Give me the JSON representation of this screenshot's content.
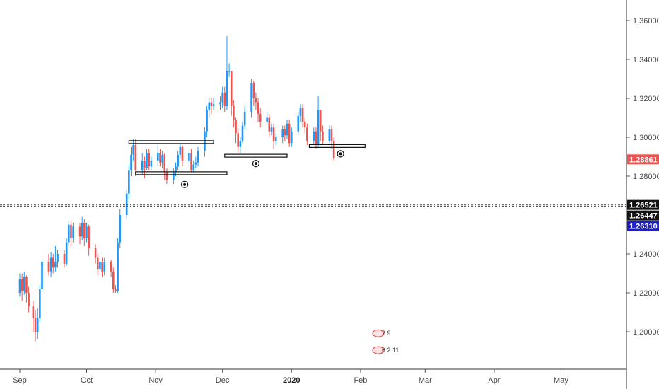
{
  "chart_data": {
    "type": "candlestick",
    "y_axis": {
      "min": 1.18,
      "max": 1.37,
      "ticks": [
        "1.36000",
        "1.34000",
        "1.32000",
        "1.30000",
        "1.28000",
        "1.24000",
        "1.22000",
        "1.20000"
      ],
      "tick_values": [
        1.36,
        1.34,
        1.32,
        1.3,
        1.28,
        1.24,
        1.22,
        1.2
      ]
    },
    "x_axis": {
      "labels": [
        "Sep",
        "Oct",
        "Nov",
        "Dec",
        "2020",
        "Feb",
        "Mar",
        "Apr",
        "May"
      ],
      "label_days": [
        0,
        30,
        61,
        91,
        122,
        153,
        182,
        213,
        243
      ],
      "bold": [
        "2020"
      ]
    },
    "colors": {
      "up": "#2196f3",
      "down": "#ef5350",
      "line": "#1c1cc8",
      "text": "#4a4a4a"
    },
    "candles": [
      [
        0,
        1.22,
        1.227,
        1.218,
        1.23
      ],
      [
        1,
        1.227,
        1.221,
        1.216,
        1.23
      ],
      [
        2,
        1.221,
        1.228,
        1.219,
        1.231
      ],
      [
        3,
        1.228,
        1.22,
        1.215,
        1.229
      ],
      [
        4,
        1.22,
        1.213,
        1.21,
        1.223
      ],
      [
        6,
        1.213,
        1.207,
        1.2,
        1.216
      ],
      [
        7,
        1.207,
        1.2,
        1.195,
        1.211
      ],
      [
        8,
        1.2,
        1.207,
        1.196,
        1.212
      ],
      [
        9,
        1.207,
        1.222,
        1.205,
        1.224
      ],
      [
        10,
        1.222,
        1.236,
        1.22,
        1.238
      ],
      [
        13,
        1.236,
        1.231,
        1.229,
        1.24
      ],
      [
        14,
        1.231,
        1.238,
        1.228,
        1.241
      ],
      [
        15,
        1.238,
        1.233,
        1.23,
        1.24
      ],
      [
        16,
        1.233,
        1.236,
        1.231,
        1.244
      ],
      [
        17,
        1.236,
        1.24,
        1.233,
        1.242
      ],
      [
        20,
        1.24,
        1.235,
        1.233,
        1.242
      ],
      [
        21,
        1.235,
        1.246,
        1.234,
        1.248
      ],
      [
        22,
        1.246,
        1.255,
        1.244,
        1.257
      ],
      [
        23,
        1.255,
        1.248,
        1.244,
        1.257
      ],
      [
        24,
        1.248,
        1.254,
        1.246,
        1.256
      ],
      [
        27,
        1.254,
        1.249,
        1.245,
        1.256
      ],
      [
        28,
        1.249,
        1.256,
        1.247,
        1.259
      ],
      [
        29,
        1.256,
        1.248,
        1.244,
        1.258
      ],
      [
        30,
        1.248,
        1.254,
        1.246,
        1.256
      ],
      [
        31,
        1.254,
        1.243,
        1.239,
        1.255
      ],
      [
        34,
        1.243,
        1.238,
        1.235,
        1.245
      ],
      [
        35,
        1.238,
        1.232,
        1.229,
        1.24
      ],
      [
        36,
        1.232,
        1.236,
        1.229,
        1.238
      ],
      [
        37,
        1.236,
        1.231,
        1.228,
        1.238
      ],
      [
        38,
        1.231,
        1.236,
        1.229,
        1.238
      ],
      [
        41,
        1.236,
        1.231,
        1.228,
        1.237
      ],
      [
        42,
        1.231,
        1.222,
        1.22,
        1.233
      ],
      [
        43,
        1.222,
        1.221,
        1.22,
        1.224
      ],
      [
        44,
        1.221,
        1.246,
        1.22,
        1.248
      ],
      [
        45,
        1.246,
        1.26,
        1.243,
        1.263
      ],
      [
        48,
        1.26,
        1.271,
        1.258,
        1.273
      ],
      [
        49,
        1.271,
        1.283,
        1.268,
        1.286
      ],
      [
        50,
        1.283,
        1.291,
        1.28,
        1.295
      ],
      [
        51,
        1.291,
        1.296,
        1.288,
        1.299
      ],
      [
        52,
        1.296,
        1.283,
        1.28,
        1.299
      ],
      [
        55,
        1.283,
        1.288,
        1.281,
        1.292
      ],
      [
        56,
        1.288,
        1.284,
        1.279,
        1.29
      ],
      [
        57,
        1.284,
        1.292,
        1.283,
        1.294
      ],
      [
        58,
        1.292,
        1.285,
        1.283,
        1.294
      ],
      [
        59,
        1.285,
        1.288,
        1.283,
        1.29
      ],
      [
        62,
        1.288,
        1.292,
        1.285,
        1.296
      ],
      [
        63,
        1.292,
        1.287,
        1.285,
        1.294
      ],
      [
        64,
        1.287,
        1.291,
        1.284,
        1.293
      ],
      [
        65,
        1.291,
        1.282,
        1.278,
        1.292
      ],
      [
        66,
        1.282,
        1.278,
        1.276,
        1.284
      ],
      [
        69,
        1.278,
        1.282,
        1.276,
        1.284
      ],
      [
        70,
        1.282,
        1.285,
        1.28,
        1.287
      ],
      [
        71,
        1.285,
        1.291,
        1.283,
        1.293
      ],
      [
        72,
        1.291,
        1.295,
        1.289,
        1.297
      ],
      [
        73,
        1.295,
        1.288,
        1.285,
        1.296
      ],
      [
        76,
        1.288,
        1.292,
        1.285,
        1.294
      ],
      [
        77,
        1.292,
        1.283,
        1.282,
        1.294
      ],
      [
        78,
        1.283,
        1.286,
        1.282,
        1.288
      ],
      [
        79,
        1.286,
        1.287,
        1.284,
        1.29
      ],
      [
        80,
        1.287,
        1.293,
        1.285,
        1.295
      ],
      [
        83,
        1.293,
        1.303,
        1.29,
        1.305
      ],
      [
        84,
        1.303,
        1.314,
        1.3,
        1.316
      ],
      [
        85,
        1.314,
        1.318,
        1.31,
        1.32
      ],
      [
        86,
        1.318,
        1.316,
        1.312,
        1.32
      ],
      [
        87,
        1.316,
        1.317,
        1.314,
        1.32
      ],
      [
        90,
        1.317,
        1.318,
        1.314,
        1.321
      ],
      [
        91,
        1.318,
        1.323,
        1.315,
        1.326
      ],
      [
        92,
        1.323,
        1.316,
        1.313,
        1.326
      ],
      [
        93,
        1.316,
        1.334,
        1.314,
        1.352
      ],
      [
        94,
        1.334,
        1.334,
        1.331,
        1.338
      ],
      [
        95,
        1.334,
        1.316,
        1.311,
        1.334
      ],
      [
        96,
        1.316,
        1.309,
        1.305,
        1.319
      ],
      [
        97,
        1.309,
        1.302,
        1.297,
        1.31
      ],
      [
        98,
        1.302,
        1.295,
        1.292,
        1.304
      ],
      [
        99,
        1.295,
        1.298,
        1.292,
        1.3
      ],
      [
        100,
        1.298,
        1.306,
        1.297,
        1.308
      ],
      [
        101,
        1.306,
        1.313,
        1.304,
        1.316
      ],
      [
        104,
        1.313,
        1.328,
        1.31,
        1.33
      ],
      [
        105,
        1.328,
        1.32,
        1.316,
        1.329
      ],
      [
        106,
        1.32,
        1.318,
        1.314,
        1.323
      ],
      [
        107,
        1.318,
        1.312,
        1.308,
        1.32
      ],
      [
        108,
        1.312,
        1.308,
        1.305,
        1.315
      ],
      [
        111,
        1.308,
        1.31,
        1.306,
        1.313
      ],
      [
        112,
        1.31,
        1.303,
        1.3,
        1.312
      ],
      [
        113,
        1.303,
        1.305,
        1.301,
        1.307
      ],
      [
        114,
        1.305,
        1.298,
        1.294,
        1.307
      ],
      [
        115,
        1.298,
        1.3,
        1.296,
        1.302
      ],
      [
        118,
        1.3,
        1.304,
        1.297,
        1.306
      ],
      [
        119,
        1.304,
        1.301,
        1.298,
        1.306
      ],
      [
        120,
        1.301,
        1.307,
        1.299,
        1.309
      ],
      [
        121,
        1.307,
        1.297,
        1.295,
        1.309
      ],
      [
        122,
        1.297,
        1.303,
        1.295,
        1.305
      ],
      [
        125,
        1.303,
        1.311,
        1.301,
        1.313
      ],
      [
        126,
        1.311,
        1.315,
        1.308,
        1.317
      ],
      [
        127,
        1.315,
        1.308,
        1.305,
        1.317
      ],
      [
        128,
        1.308,
        1.305,
        1.302,
        1.31
      ],
      [
        129,
        1.305,
        1.298,
        1.296,
        1.307
      ],
      [
        132,
        1.298,
        1.303,
        1.296,
        1.305
      ],
      [
        133,
        1.303,
        1.296,
        1.294,
        1.305
      ],
      [
        134,
        1.296,
        1.314,
        1.295,
        1.321
      ],
      [
        135,
        1.314,
        1.303,
        1.298,
        1.314
      ],
      [
        136,
        1.303,
        1.298,
        1.296,
        1.306
      ],
      [
        139,
        1.298,
        1.304,
        1.297,
        1.306
      ],
      [
        140,
        1.304,
        1.298,
        1.294,
        1.306
      ],
      [
        141,
        1.298,
        1.289,
        1.288,
        1.3
      ]
    ],
    "horizontal_lines": [
      {
        "price": 1.2652,
        "style": "dotted",
        "color": "#555555"
      },
      {
        "price": 1.2645,
        "style": "dotted",
        "color": "#555555"
      },
      {
        "price": 1.2631,
        "style": "solid",
        "color": "#1c1cc8",
        "start_day": 45
      }
    ],
    "zones": [
      {
        "start_day": 49,
        "end_day": 87,
        "price": 1.2975,
        "color": "#111111"
      },
      {
        "start_day": 52,
        "end_day": 93,
        "price": 1.2815,
        "color": "#111111"
      },
      {
        "start_day": 92,
        "end_day": 120,
        "price": 1.2905,
        "color": "#111111"
      },
      {
        "start_day": 130,
        "end_day": 155,
        "price": 1.2955,
        "color": "#111111"
      }
    ],
    "eye_icons": [
      {
        "day": 74,
        "price": 1.2757
      },
      {
        "day": 106,
        "price": 1.2865
      },
      {
        "day": 144,
        "price": 1.2915
      }
    ],
    "price_tags": [
      {
        "price": 1.28861,
        "label": "1.28861",
        "bg": "#ef5350"
      },
      {
        "price": 1.26521,
        "label": "1.26521",
        "bg": "#111111"
      },
      {
        "price": 1.26447,
        "label": "1.26447",
        "bg": "#111111"
      },
      {
        "price": 1.2631,
        "label": "1.26310",
        "bg": "#1c1cc8"
      }
    ],
    "notes": [
      {
        "day": 160,
        "price": 1.1992,
        "lines": [
          "2 9"
        ]
      },
      {
        "day": 160,
        "price": 1.1905,
        "lines": [
          "6 2 11"
        ]
      }
    ]
  }
}
